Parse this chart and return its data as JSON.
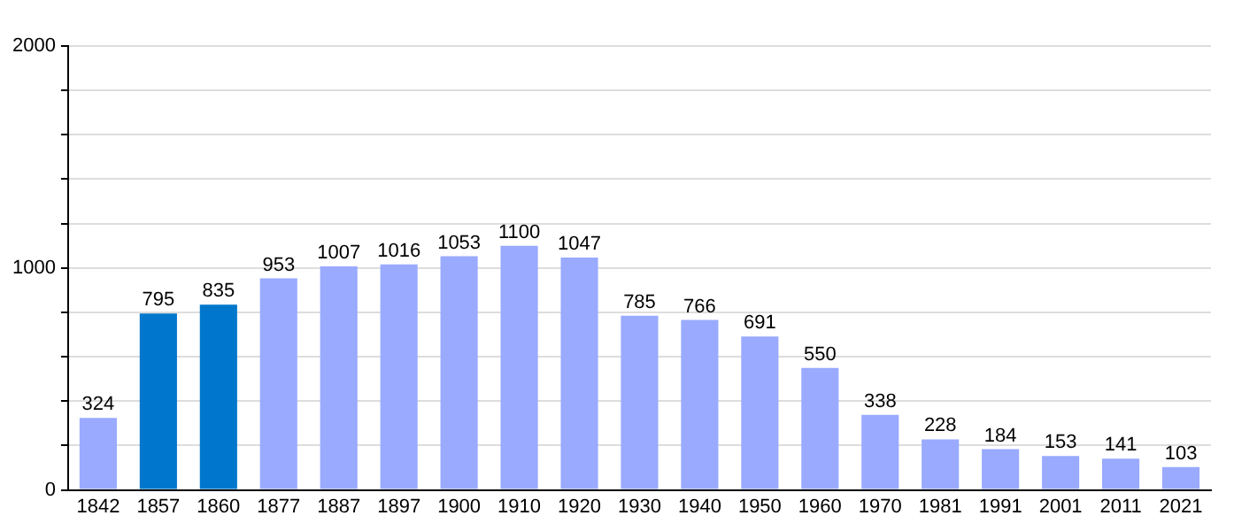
{
  "chart_data": {
    "type": "bar",
    "categories": [
      "1842",
      "1857",
      "1860",
      "1877",
      "1887",
      "1897",
      "1900",
      "1910",
      "1920",
      "1930",
      "1940",
      "1950",
      "1960",
      "1970",
      "1981",
      "1991",
      "2001",
      "2011",
      "2021"
    ],
    "values": [
      324,
      795,
      835,
      953,
      1007,
      1016,
      1053,
      1100,
      1047,
      785,
      766,
      691,
      550,
      338,
      228,
      184,
      153,
      141,
      103
    ],
    "colors": [
      "#99aaff",
      "#0077cc",
      "#0077cc",
      "#99aaff",
      "#99aaff",
      "#99aaff",
      "#99aaff",
      "#99aaff",
      "#99aaff",
      "#99aaff",
      "#99aaff",
      "#99aaff",
      "#99aaff",
      "#99aaff",
      "#99aaff",
      "#99aaff",
      "#99aaff",
      "#99aaff",
      "#99aaff"
    ],
    "ylim": [
      0,
      2000
    ],
    "yticks": [
      0,
      {
        "value": 200,
        "label": null
      },
      {
        "value": 400,
        "label": null
      },
      {
        "value": 600,
        "label": null
      },
      {
        "value": 800,
        "label": null
      },
      1000,
      {
        "value": 1200,
        "label": null
      },
      {
        "value": 1400,
        "label": null
      },
      {
        "value": 1600,
        "label": null
      },
      {
        "value": 1800,
        "label": null
      },
      2000
    ],
    "grid": "y",
    "data_labels": true
  }
}
